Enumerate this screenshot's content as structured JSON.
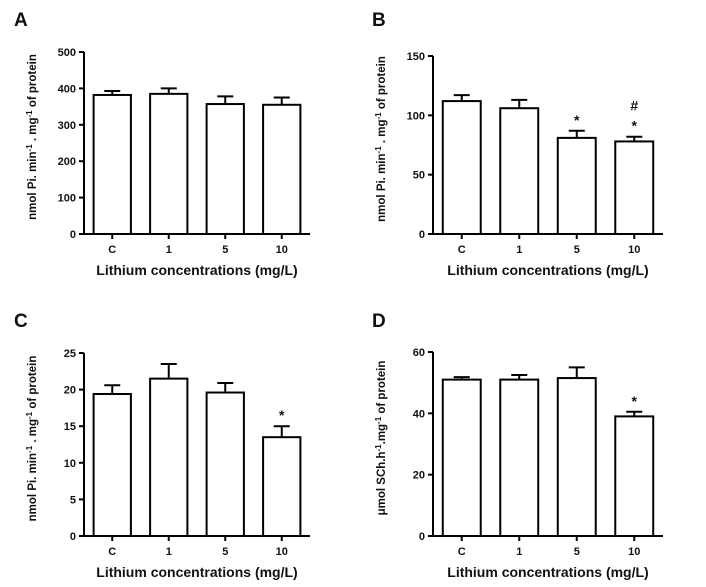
{
  "chart_data": [
    {
      "type": "bar",
      "panel": "A",
      "categories": [
        "C",
        "1",
        "5",
        "10"
      ],
      "values": [
        382,
        385,
        357,
        355
      ],
      "errors": [
        11,
        15,
        21,
        20
      ],
      "annotations": [
        [],
        [],
        [],
        []
      ],
      "xlabel": "Lithium concentrations (mg/L)",
      "ylabel": "nmol Pi. min-1 . mg-1 of protein",
      "ylim": [
        0,
        500
      ],
      "yticks": [
        0,
        100,
        200,
        300,
        400,
        500
      ],
      "bar_fill": "#ffffff",
      "bar_stroke": "#000000"
    },
    {
      "type": "bar",
      "panel": "B",
      "categories": [
        "C",
        "1",
        "5",
        "10"
      ],
      "values": [
        112,
        106,
        81,
        78
      ],
      "errors": [
        5,
        7,
        6,
        4
      ],
      "annotations": [
        [],
        [],
        [
          "*"
        ],
        [
          "*",
          "#"
        ]
      ],
      "xlabel": "Lithium concentrations (mg/L)",
      "ylabel": "nmol Pi. min-1 . mg-1 of protein",
      "ylim": [
        0,
        150
      ],
      "yticks": [
        0,
        50,
        100,
        150
      ],
      "bar_fill": "#ffffff",
      "bar_stroke": "#000000"
    },
    {
      "type": "bar",
      "panel": "C",
      "categories": [
        "C",
        "1",
        "5",
        "10"
      ],
      "values": [
        19.4,
        21.5,
        19.6,
        13.5
      ],
      "errors": [
        1.2,
        2.0,
        1.3,
        1.5
      ],
      "annotations": [
        [],
        [],
        [],
        [
          "*"
        ]
      ],
      "xlabel": "Lithium concentrations (mg/L)",
      "ylabel": "nmol Pi. min-1 . mg-1 of protein",
      "ylim": [
        0,
        25
      ],
      "yticks": [
        0,
        5,
        10,
        15,
        20,
        25
      ],
      "bar_fill": "#ffffff",
      "bar_stroke": "#000000"
    },
    {
      "type": "bar",
      "panel": "D",
      "categories": [
        "C",
        "1",
        "5",
        "10"
      ],
      "values": [
        51,
        51,
        51.5,
        39
      ],
      "errors": [
        0.8,
        1.5,
        3.5,
        1.5
      ],
      "annotations": [
        [],
        [],
        [],
        [
          "*"
        ]
      ],
      "xlabel": "Lithium concentrations (mg/L)",
      "ylabel": "μmol SCh.h-1.mg-1 of protein",
      "ylim": [
        0,
        60
      ],
      "yticks": [
        0,
        20,
        40,
        60
      ],
      "bar_fill": "#ffffff",
      "bar_stroke": "#000000"
    }
  ]
}
